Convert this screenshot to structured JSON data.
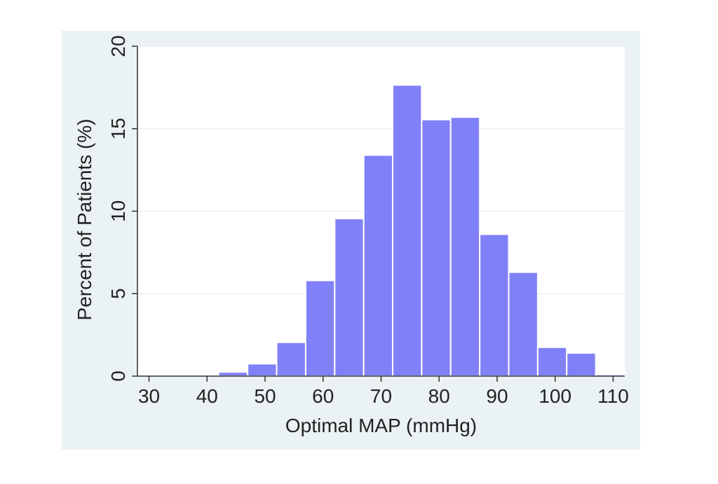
{
  "chart_data": {
    "type": "bar",
    "title": "",
    "xlabel": "Optimal MAP (mmHg)",
    "ylabel": "Percent of Patients (%)",
    "xlim": [
      28,
      112
    ],
    "ylim": [
      0,
      20
    ],
    "xticks": [
      30,
      40,
      50,
      60,
      70,
      80,
      90,
      100,
      110
    ],
    "yticks": [
      0,
      5,
      10,
      15,
      20
    ],
    "grid": true,
    "bin_width": 5,
    "bins": [
      {
        "start": 32,
        "value": 0.02
      },
      {
        "start": 37,
        "value": 0.08
      },
      {
        "start": 42,
        "value": 0.25
      },
      {
        "start": 47,
        "value": 0.75
      },
      {
        "start": 52,
        "value": 2.05
      },
      {
        "start": 57,
        "value": 5.8
      },
      {
        "start": 62,
        "value": 9.55
      },
      {
        "start": 67,
        "value": 13.4
      },
      {
        "start": 72,
        "value": 17.65
      },
      {
        "start": 77,
        "value": 15.55
      },
      {
        "start": 82,
        "value": 15.7
      },
      {
        "start": 87,
        "value": 8.6
      },
      {
        "start": 92,
        "value": 6.3
      },
      {
        "start": 97,
        "value": 1.75
      },
      {
        "start": 102,
        "value": 1.4
      },
      {
        "start": 107,
        "value": 0.1
      }
    ],
    "colors": {
      "bar_fill": "#8080f8",
      "bar_edge": "#ffffff",
      "plot_background": "#ffffff",
      "figure_background": "#eaf2f3",
      "gridline": "#e8f0f0",
      "axis": "#333333"
    }
  }
}
